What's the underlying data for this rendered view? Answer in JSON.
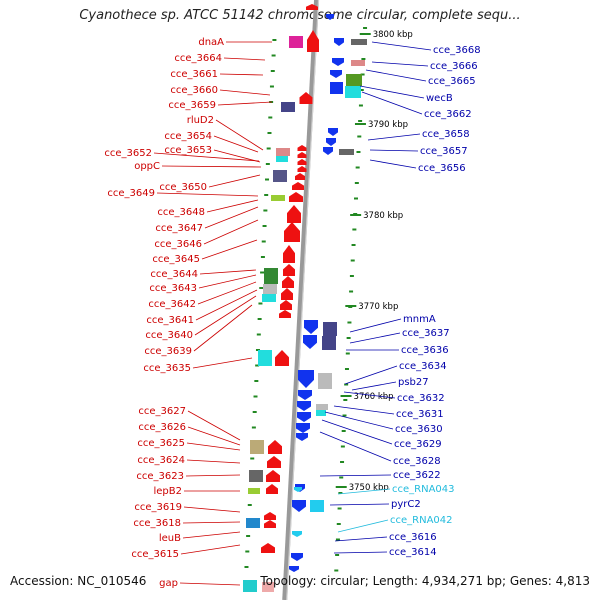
{
  "title": "Cyanothece sp. ATCC 51142 chromosome circular, complete sequ...",
  "footer": {
    "accession": "Accession: NC_010546",
    "summary": "Topology: circular; Length: 4,934,271 bp; Genes: 4,813"
  },
  "colors": {
    "left_label": "#cc0000",
    "right_label": "#0000aa",
    "rna_label": "#22bbdd",
    "backbone": "#999999",
    "kbp_label": "#000000"
  },
  "kbp_ticks": [
    "3800 kbp",
    "3790 kbp",
    "3780 kbp",
    "3770 kbp",
    "3760 kbp",
    "3750 kbp"
  ],
  "left_genes": [
    "dnaA",
    "cce_3664",
    "cce_3661",
    "cce_3660",
    "cce_3659",
    "rluD2",
    "cce_3654",
    "cce_3652",
    "cce_3653",
    "oppC",
    "cce_3650",
    "cce_3649",
    "cce_3648",
    "cce_3647",
    "cce_3646",
    "cce_3645",
    "cce_3644",
    "cce_3643",
    "cce_3642",
    "cce_3641",
    "cce_3640",
    "cce_3639",
    "cce_3635",
    "cce_3627",
    "cce_3626",
    "cce_3625",
    "cce_3624",
    "cce_3623",
    "lepB2",
    "cce_3619",
    "cce_3618",
    "leuB",
    "cce_3615",
    "gap"
  ],
  "right_genes": [
    "cce_3668",
    "cce_3666",
    "cce_3665",
    "wecB",
    "cce_3662",
    "cce_3658",
    "cce_3657",
    "cce_3656",
    "mnmA",
    "cce_3637",
    "cce_3636",
    "cce_3634",
    "psb27",
    "cce_3632",
    "cce_3631",
    "cce_3630",
    "cce_3629",
    "cce_3628",
    "cce_3622",
    "cce_RNA043",
    "pyrC2",
    "cce_RNA042",
    "cce_3616",
    "cce_3614"
  ],
  "rna_genes": [
    "cce_RNA043",
    "cce_RNA042"
  ]
}
